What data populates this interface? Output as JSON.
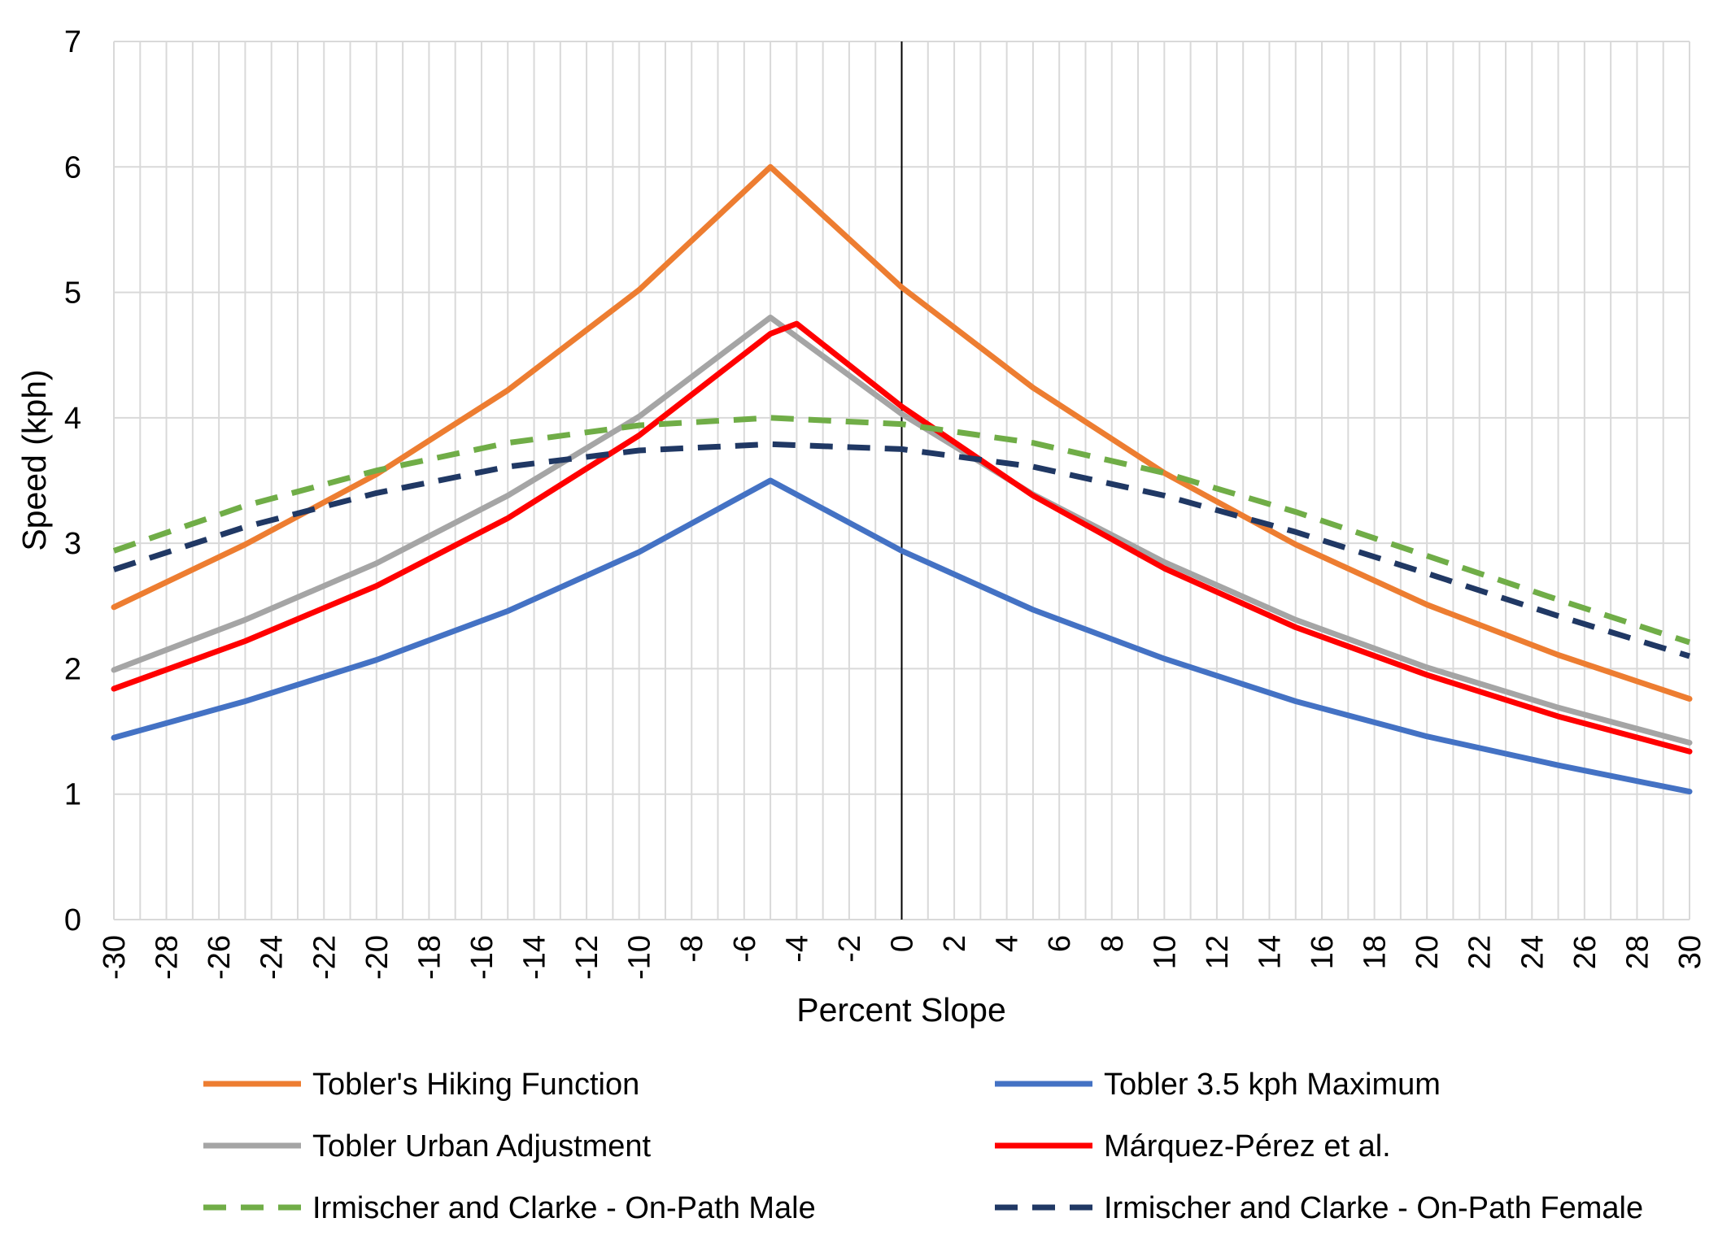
{
  "chart_data": {
    "type": "line",
    "xlabel": "Percent Slope",
    "ylabel": "Speed (kph)",
    "xlim": [
      -30,
      30
    ],
    "ylim": [
      0,
      7
    ],
    "x_ticks": [
      -30,
      -28,
      -26,
      -24,
      -22,
      -20,
      -18,
      -16,
      -14,
      -12,
      -10,
      -8,
      -6,
      -4,
      -2,
      0,
      2,
      4,
      6,
      8,
      10,
      12,
      14,
      16,
      18,
      20,
      22,
      24,
      26,
      28,
      30
    ],
    "x_tick_labels": [
      "-30",
      "-28",
      "-26",
      "-24",
      "-22",
      "-20",
      "-18",
      "-16",
      "-14",
      "-12",
      "-10",
      "-8",
      "-6",
      "-4",
      "-2",
      "0",
      "2",
      "4",
      "6",
      "8",
      "10",
      "12",
      "14",
      "16",
      "18",
      "20",
      "22",
      "24",
      "26",
      "28",
      "30"
    ],
    "y_ticks": [
      0,
      1,
      2,
      3,
      4,
      5,
      6,
      7
    ],
    "y_tick_labels": [
      "0",
      "1",
      "2",
      "3",
      "4",
      "5",
      "6",
      "7"
    ],
    "grid": true,
    "legend_position": "bottom",
    "series": [
      {
        "name": "Tobler's Hiking Function",
        "color": "#ED7D31",
        "dash": "solid",
        "x": [
          -30,
          -25,
          -20,
          -15,
          -10,
          -5,
          0,
          5,
          10,
          15,
          20,
          25,
          30
        ],
        "y": [
          2.49,
          2.99,
          3.55,
          4.22,
          5.02,
          6.0,
          5.04,
          4.24,
          3.56,
          2.99,
          2.51,
          2.11,
          1.76
        ]
      },
      {
        "name": "Tobler 3.5 kph Maximum",
        "color": "#4472C4",
        "dash": "solid",
        "x": [
          -30,
          -25,
          -20,
          -15,
          -10,
          -5,
          0,
          5,
          10,
          15,
          20,
          25,
          30
        ],
        "y": [
          1.45,
          1.74,
          2.07,
          2.46,
          2.93,
          3.5,
          2.94,
          2.47,
          2.08,
          1.74,
          1.46,
          1.23,
          1.02
        ]
      },
      {
        "name": "Tobler Urban Adjustment",
        "color": "#A5A5A5",
        "dash": "solid",
        "x": [
          -30,
          -25,
          -20,
          -15,
          -10,
          -5,
          0,
          5,
          10,
          15,
          20,
          25,
          30
        ],
        "y": [
          1.99,
          2.39,
          2.84,
          3.38,
          4.01,
          4.8,
          4.03,
          3.39,
          2.85,
          2.39,
          2.01,
          1.69,
          1.41
        ]
      },
      {
        "name": "Márquez-Pérez et al.",
        "color": "#FF0000",
        "dash": "solid",
        "x": [
          -30,
          -25,
          -20,
          -15,
          -10,
          -5,
          -4,
          0,
          5,
          10,
          15,
          20,
          25,
          30
        ],
        "y": [
          1.84,
          2.22,
          2.66,
          3.2,
          3.86,
          4.67,
          4.75,
          4.09,
          3.38,
          2.8,
          2.33,
          1.95,
          1.62,
          1.34
        ]
      },
      {
        "name": "Irmischer and Clarke - On-Path Male",
        "color": "#70AD47",
        "dash": "dashed",
        "x": [
          -30,
          -25,
          -20,
          -15,
          -10,
          -5,
          0,
          5,
          10,
          15,
          20,
          25,
          30
        ],
        "y": [
          2.94,
          3.3,
          3.58,
          3.8,
          3.94,
          4.0,
          3.95,
          3.8,
          3.56,
          3.25,
          2.9,
          2.55,
          2.21
        ]
      },
      {
        "name": "Irmischer and Clarke - On-Path Female",
        "color": "#203864",
        "dash": "dashed",
        "x": [
          -30,
          -25,
          -20,
          -15,
          -10,
          -5,
          0,
          5,
          10,
          15,
          20,
          25,
          30
        ],
        "y": [
          2.79,
          3.13,
          3.4,
          3.61,
          3.74,
          3.79,
          3.75,
          3.61,
          3.38,
          3.09,
          2.76,
          2.42,
          2.1
        ]
      }
    ]
  }
}
